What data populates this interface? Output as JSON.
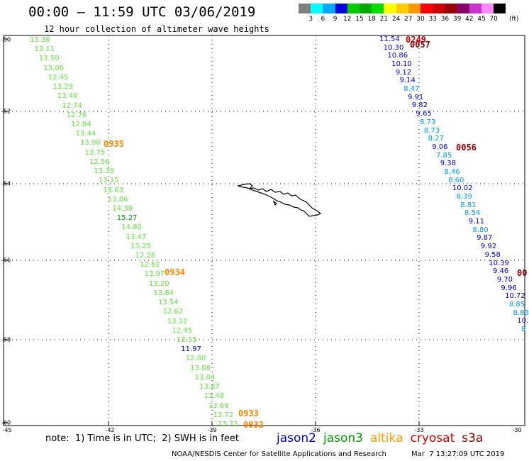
{
  "header": {
    "title": "00:00 – 11:59 UTC 03/06/2019",
    "subtitle": "12 hour collection of altimeter wave heights"
  },
  "color_scale": {
    "colors": [
      "#808080",
      "#00ffff",
      "#00aaff",
      "#0000dd",
      "#00cc00",
      "#00aa00",
      "#00dd00",
      "#ffff00",
      "#ffcc00",
      "#ff9900",
      "#ff0000",
      "#cc0000",
      "#990000",
      "#880066",
      "#cc33cc",
      "#ff88ff",
      "#000000"
    ],
    "labels": [
      "3",
      "6",
      "9",
      "12",
      "15",
      "18",
      "21",
      "24",
      "27",
      "30",
      "33",
      "36",
      "39",
      "42",
      "45",
      "70"
    ],
    "unit": "(ft)"
  },
  "axes": {
    "lat_labels": [
      "-50",
      "-52",
      "-54",
      "-56",
      "-58",
      "-60"
    ],
    "lon_labels": [
      "-45",
      "-42",
      "-39",
      "-36",
      "-33",
      "-30"
    ]
  },
  "note": "note:  1) Time is in UTC;  2) SWH is in feet",
  "legend": [
    {
      "name": "jason2",
      "color": "#0000cc"
    },
    {
      "name": "jason3",
      "color": "#009900"
    },
    {
      "name": "altika",
      "color": "#ff9900"
    },
    {
      "name": "cryosat",
      "color": "#cc0000"
    },
    {
      "name": "s3a",
      "color": "#880000"
    }
  ],
  "footer": {
    "credit": "NOAA/NESDIS Center for Satellite Applications and Research",
    "timestamp": "Mar  7 13:27:09 UTC 2019"
  },
  "tracks": {
    "green": {
      "color": "#66dd44",
      "values": [
        "13.36",
        "13.11",
        "13.50",
        "13.06",
        "12.45",
        "13.29",
        "13.46",
        "12.74",
        "12.76",
        "12.84",
        "13.44",
        "13.90",
        "13.75",
        "12.56",
        "13.39",
        "13.15",
        "13.63",
        "13.86",
        "14.38",
        "15.27",
        "14.80",
        "13.47",
        "13.25",
        "12.26",
        "12.62",
        "13.97",
        "13.20",
        "13.84",
        "13.54",
        "12.62",
        "13.12",
        "12.45",
        "12.35",
        "11.97",
        "12.80",
        "13.08",
        "13.04",
        "13.87",
        "13.48",
        "13.66",
        "13.72",
        "13.73"
      ],
      "special_colors": {
        "19": "#009900",
        "33": "#0000cc"
      }
    },
    "blue": {
      "color": "#0000cc",
      "values": [
        "11.54",
        "10.30",
        "10.86",
        "10.10",
        "9.12",
        "9.14",
        "8.47",
        "9.91",
        "9.82",
        "9.65",
        "8.73",
        "8.73",
        "8.27",
        "9.06",
        "7.85",
        "9.38",
        "8.46",
        "8.60",
        "10.02",
        "8.39",
        "8.81",
        "8.54",
        "9.11",
        "8.80",
        "9.87",
        "9.92",
        "9.58",
        "10.39",
        "9.46",
        "9.70",
        "9.96",
        "10.72",
        "8.85",
        "8.83",
        "10.",
        "8"
      ],
      "light_indices": [
        6,
        10,
        11,
        12,
        14,
        16,
        17,
        19,
        20,
        21,
        23,
        32,
        33,
        35
      ],
      "light_color": "#0099ee"
    },
    "time_labels": [
      {
        "text": "0935",
        "color": "#ff8800"
      },
      {
        "text": "0934",
        "color": "#ff8800"
      },
      {
        "text": "0933",
        "color": "#ff8800"
      },
      {
        "text": "0932",
        "color": "#ff8800"
      },
      {
        "text": "0249",
        "color": "#cc0000"
      },
      {
        "text": "0057",
        "color": "#880000"
      },
      {
        "text": "0056",
        "color": "#880000"
      },
      {
        "text": "00",
        "color": "#880000"
      }
    ]
  }
}
